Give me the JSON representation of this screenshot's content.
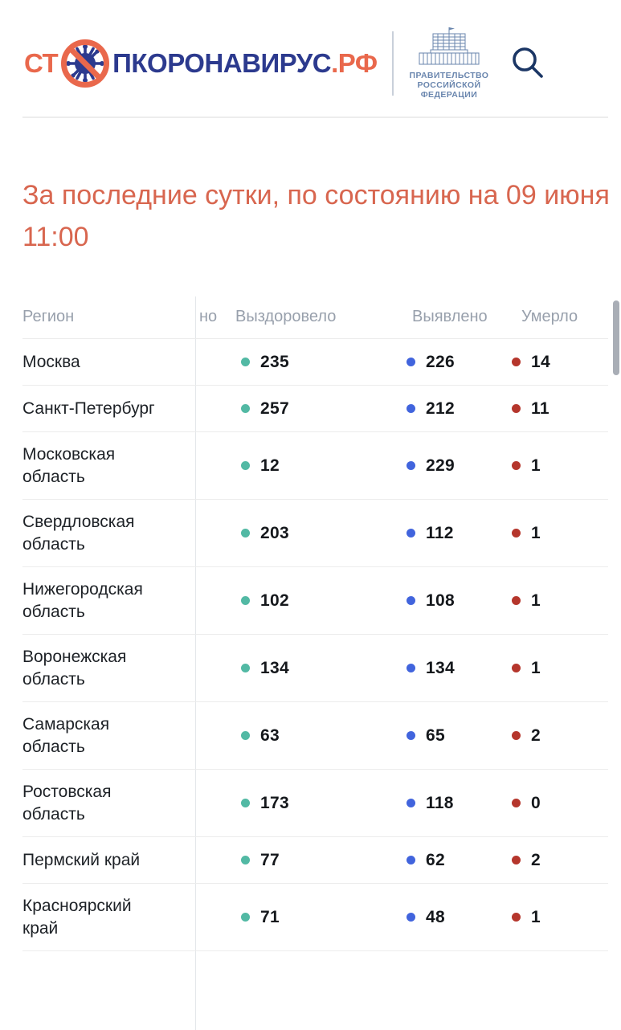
{
  "header": {
    "logo": {
      "prefix": "СТ",
      "body": "ПКОРОНАВИРУС",
      "suffix": ".РФ"
    },
    "government": {
      "line1": "ПРАВИТЕЛЬСТВО",
      "line2": "РОССИЙСКОЙ",
      "line3": "ФЕДЕРАЦИИ"
    },
    "icons": [
      "no-virus-icon",
      "government-building-icon",
      "search-icon",
      "hamburger-menu-icon"
    ]
  },
  "heading": {
    "line1": "За последние сутки, по состоянию на 09 июня",
    "line2": "11:00"
  },
  "table": {
    "columns": {
      "region": "Регион",
      "truncated": "но",
      "recovered": "Выздоровело",
      "detected": "Выявлено",
      "died": "Умерло"
    },
    "rows": [
      {
        "region": "Москва",
        "recovered": "235",
        "detected": "226",
        "died": "14"
      },
      {
        "region": "Санкт-Петербург",
        "recovered": "257",
        "detected": "212",
        "died": "11"
      },
      {
        "region": "Московская\nобласть",
        "recovered": "12",
        "detected": "229",
        "died": "1"
      },
      {
        "region": "Свердловская\nобласть",
        "recovered": "203",
        "detected": "112",
        "died": "1"
      },
      {
        "region": "Нижегородская\nобласть",
        "recovered": "102",
        "detected": "108",
        "died": "1"
      },
      {
        "region": "Воронежская\nобласть",
        "recovered": "134",
        "detected": "134",
        "died": "1"
      },
      {
        "region": "Самарская\nобласть",
        "recovered": "63",
        "detected": "65",
        "died": "2"
      },
      {
        "region": "Ростовская\nобласть",
        "recovered": "173",
        "detected": "118",
        "died": "0"
      },
      {
        "region": "Пермский край",
        "recovered": "77",
        "detected": "62",
        "died": "2"
      },
      {
        "region": "Красноярский\nкрай",
        "recovered": "71",
        "detected": "48",
        "died": "1"
      }
    ]
  },
  "colors": {
    "orange": "#e9684c",
    "navy": "#2c3a8e",
    "icon-navy": "#1b3665",
    "gov-blue": "#6a86ae",
    "coral": "#d8664f",
    "col-gray": "#98a0ac",
    "teal": "#52b9a4",
    "blue": "#4164dd",
    "red": "#b5362c"
  }
}
